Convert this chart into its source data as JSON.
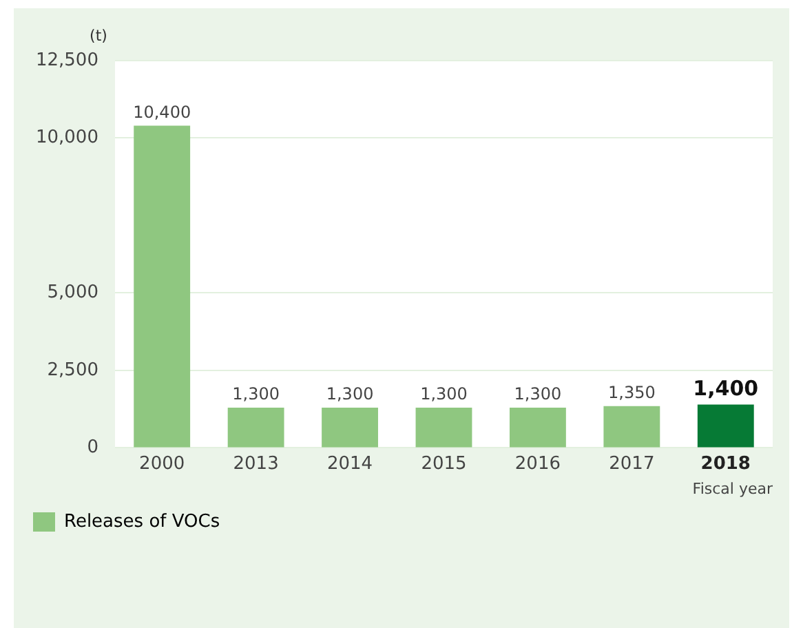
{
  "chart_data": {
    "type": "bar",
    "ylabel": "(t)",
    "xlabel": "Fiscal year",
    "categories": [
      "2000",
      "2013",
      "2014",
      "2015",
      "2016",
      "2017",
      "2018"
    ],
    "series": [
      {
        "name": "Releases of VOCs",
        "color": "#8fc780",
        "colors": [
          "#8fc780",
          "#8fc780",
          "#8fc780",
          "#8fc780",
          "#8fc780",
          "#8fc780",
          "#067a35"
        ],
        "values": [
          10400,
          1300,
          1300,
          1300,
          1300,
          1350,
          1400
        ],
        "value_labels": [
          "10,400",
          "1,300",
          "1,300",
          "1,300",
          "1,300",
          "1,350",
          "1,400"
        ]
      }
    ],
    "ylim": [
      0,
      12500
    ],
    "yticks": [
      0,
      {
        "value": 2500,
        "label": "2,500"
      },
      {
        "value": 5000,
        "label": "5,000"
      },
      {
        "value": 10000,
        "label": "10,000"
      },
      {
        "value": 12500,
        "label": "12,500"
      }
    ],
    "grid": "y",
    "legend": "bottom left"
  }
}
